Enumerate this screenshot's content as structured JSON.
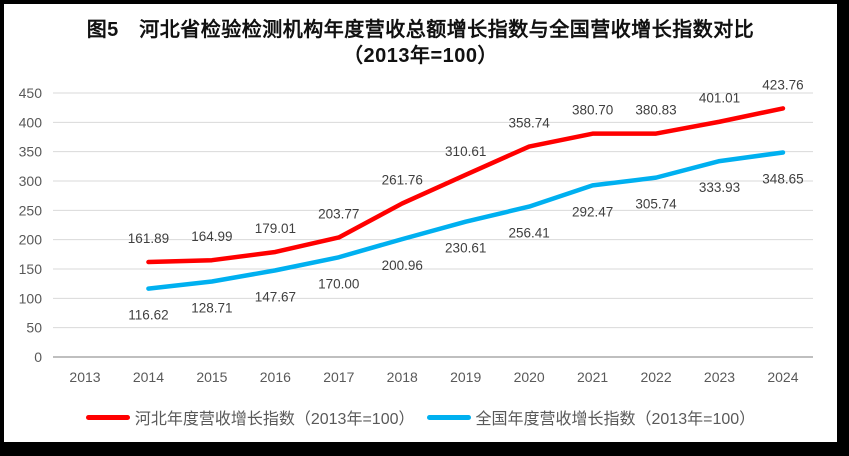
{
  "figure": {
    "title_line1": "图5　河北省检验检测机构年度营收总额增长指数与全国营收增长指数对比",
    "title_line2": "（2013年=100）"
  },
  "chart_data": {
    "type": "line",
    "title": "图5 河北省检验检测机构年度营收总额增长指数与全国营收增长指数对比（2013年=100）",
    "categories": [
      "2013",
      "2014",
      "2015",
      "2016",
      "2017",
      "2018",
      "2019",
      "2020",
      "2021",
      "2022",
      "2023",
      "2024"
    ],
    "series": [
      {
        "name": "河北年度营收增长指数（2013年=100）",
        "color": "#FF0000",
        "label_position": "above",
        "values": [
          null,
          161.89,
          164.99,
          179.01,
          203.77,
          261.76,
          310.61,
          358.74,
          380.7,
          380.83,
          401.01,
          423.76
        ]
      },
      {
        "name": "全国年度营收增长指数（2013年=100）",
        "color": "#00B0F0",
        "label_position": "below",
        "values": [
          null,
          116.62,
          128.71,
          147.67,
          170.0,
          200.96,
          230.61,
          256.41,
          292.47,
          305.74,
          333.93,
          348.65
        ]
      }
    ],
    "xlabel": "",
    "ylabel": "",
    "ylim": [
      0,
      450
    ],
    "yticks": [
      0,
      50,
      100,
      150,
      200,
      250,
      300,
      350,
      400,
      450
    ],
    "grid": true,
    "legend_position": "bottom",
    "data_labels": true,
    "colors": {
      "grid": "#D9D9D9",
      "axis": "#BFBFBF",
      "tick_text": "#595959",
      "label_text": "#3F3F3F"
    }
  },
  "legend": {
    "items": [
      {
        "label": "河北年度营收增长指数（2013年=100）",
        "color": "#FF0000"
      },
      {
        "label": "全国年度营收增长指数（2013年=100）",
        "color": "#00B0F0"
      }
    ]
  }
}
